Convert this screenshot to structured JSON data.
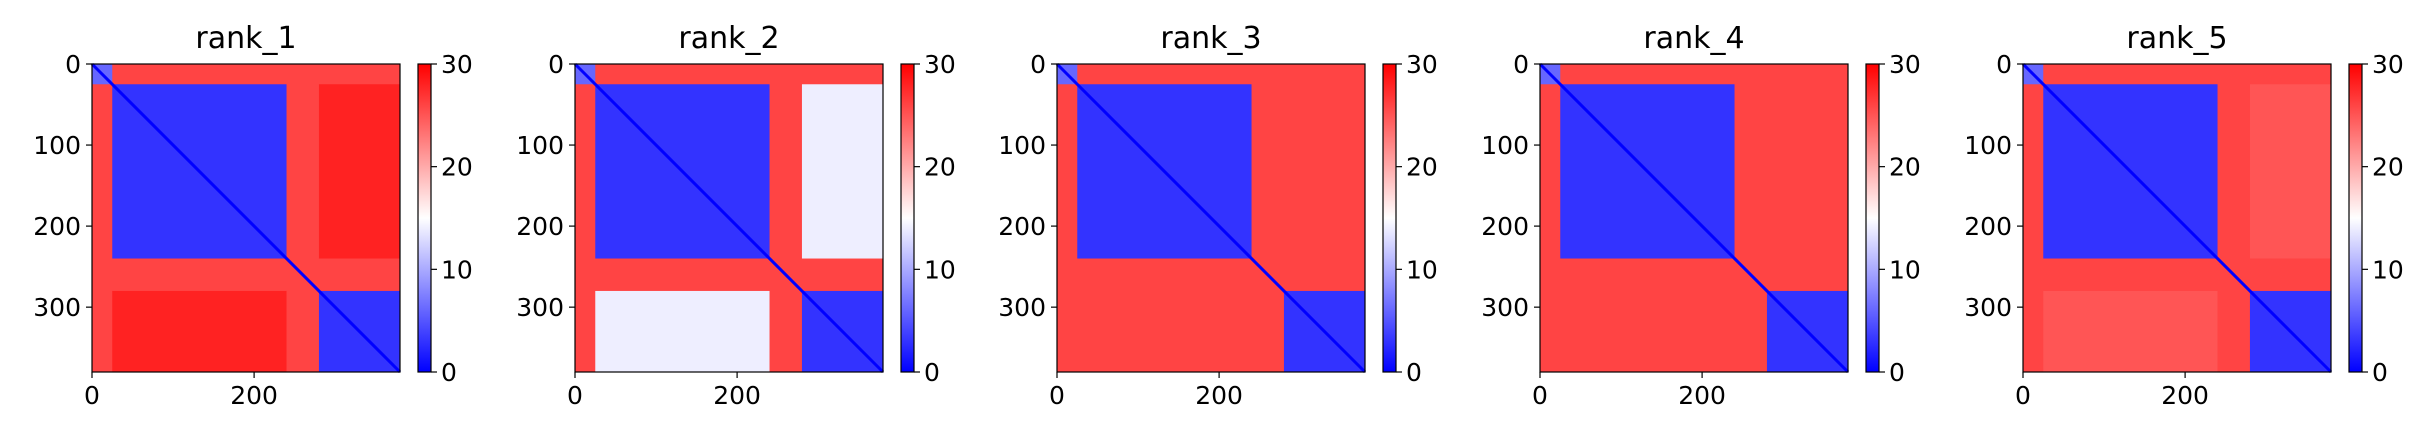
{
  "chart_data": [
    {
      "type": "heatmap",
      "title": "rank_1",
      "size": 380,
      "xticks": [
        "0",
        "200"
      ],
      "yticks": [
        "0",
        "100",
        "200",
        "300"
      ],
      "colorbar": {
        "range": [
          0,
          30
        ],
        "ticks": [
          "0",
          "10",
          "20",
          "30"
        ],
        "colormap": "bwr"
      },
      "blocks": [
        {
          "from": 25,
          "to": 240,
          "value": 3
        },
        {
          "from": 280,
          "to": 380,
          "value": 3
        }
      ],
      "off_block_value": 26,
      "cross_block_value": 28
    },
    {
      "type": "heatmap",
      "title": "rank_2",
      "size": 380,
      "xticks": [
        "0",
        "200"
      ],
      "yticks": [
        "0",
        "100",
        "200",
        "300"
      ],
      "colorbar": {
        "range": [
          0,
          30
        ],
        "ticks": [
          "0",
          "10",
          "20",
          "30"
        ],
        "colormap": "bwr"
      },
      "blocks": [
        {
          "from": 25,
          "to": 240,
          "value": 3
        },
        {
          "from": 280,
          "to": 380,
          "value": 3
        }
      ],
      "off_block_value": 26,
      "cross_block_value": 14
    },
    {
      "type": "heatmap",
      "title": "rank_3",
      "size": 380,
      "xticks": [
        "0",
        "200"
      ],
      "yticks": [
        "0",
        "100",
        "200",
        "300"
      ],
      "colorbar": {
        "range": [
          0,
          30
        ],
        "ticks": [
          "0",
          "10",
          "20",
          "30"
        ],
        "colormap": "bwr"
      },
      "blocks": [
        {
          "from": 25,
          "to": 240,
          "value": 3
        },
        {
          "from": 280,
          "to": 380,
          "value": 3
        }
      ],
      "off_block_value": 26,
      "cross_block_value": 26
    },
    {
      "type": "heatmap",
      "title": "rank_4",
      "size": 380,
      "xticks": [
        "0",
        "200"
      ],
      "yticks": [
        "0",
        "100",
        "200",
        "300"
      ],
      "colorbar": {
        "range": [
          0,
          30
        ],
        "ticks": [
          "0",
          "10",
          "20",
          "30"
        ],
        "colormap": "bwr"
      },
      "blocks": [
        {
          "from": 25,
          "to": 240,
          "value": 3
        },
        {
          "from": 280,
          "to": 380,
          "value": 3
        }
      ],
      "off_block_value": 26,
      "cross_block_value": 26
    },
    {
      "type": "heatmap",
      "title": "rank_5",
      "size": 380,
      "xticks": [
        "0",
        "200"
      ],
      "yticks": [
        "0",
        "100",
        "200",
        "300"
      ],
      "colorbar": {
        "range": [
          0,
          30
        ],
        "ticks": [
          "0",
          "10",
          "20",
          "30"
        ],
        "colormap": "bwr"
      },
      "blocks": [
        {
          "from": 25,
          "to": 240,
          "value": 3
        },
        {
          "from": 280,
          "to": 380,
          "value": 3
        }
      ],
      "off_block_value": 26,
      "cross_block_value": 25
    }
  ]
}
